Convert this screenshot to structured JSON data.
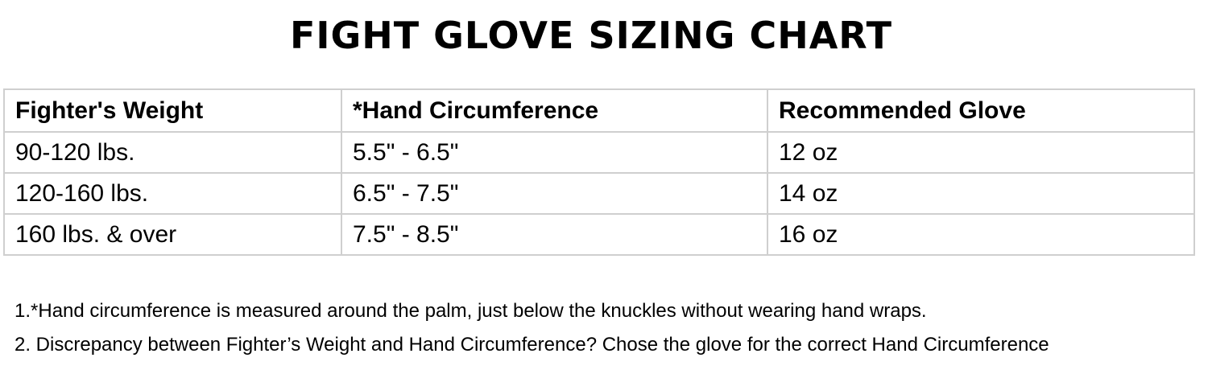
{
  "title": "FIGHT GLOVE SIZING CHART",
  "table": {
    "headers": [
      "Fighter's Weight",
      "*Hand Circumference",
      "Recommended Glove"
    ],
    "rows": [
      [
        "90-120 lbs.",
        "5.5\" - 6.5\"",
        "12 oz"
      ],
      [
        "120-160 lbs.",
        "6.5\" - 7.5\"",
        "14 oz"
      ],
      [
        "160 lbs. & over",
        "7.5\" - 8.5\"",
        "16 oz"
      ]
    ]
  },
  "notes": [
    "1.*Hand circumference is measured around the palm, just below the knuckles without wearing hand wraps.",
    "2. Discrepancy between Fighter’s Weight and Hand Circumference? Chose the glove for the correct Hand Circumference"
  ]
}
